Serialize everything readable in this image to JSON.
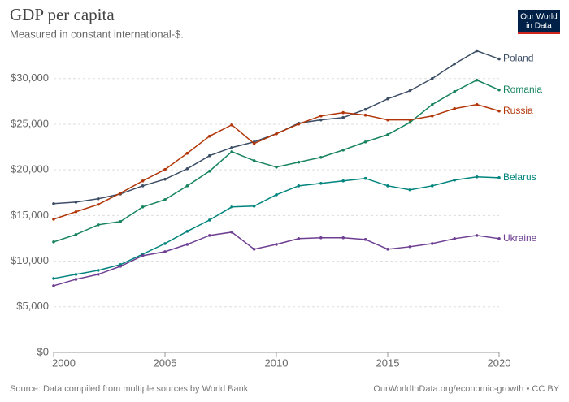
{
  "chart_data": {
    "type": "line",
    "title": "GDP per capita",
    "subtitle": "Measured in constant international-$.",
    "source": "Source: Data compiled from multiple sources by World Bank",
    "credit": "OurWorldInData.org/economic-growth • CC BY",
    "logo": [
      "Our World",
      "in Data"
    ],
    "x": [
      2000,
      2001,
      2002,
      2003,
      2004,
      2005,
      2006,
      2007,
      2008,
      2009,
      2010,
      2011,
      2012,
      2013,
      2014,
      2015,
      2016,
      2017,
      2018,
      2019,
      2020
    ],
    "xlim": [
      2000,
      2020
    ],
    "xticks": [
      2000,
      2005,
      2010,
      2015,
      2020
    ],
    "ylim": [
      0,
      33000
    ],
    "yticks": [
      {
        "value": 0,
        "label": "$0"
      },
      {
        "value": 5000,
        "label": "$5,000"
      },
      {
        "value": 10000,
        "label": "$10,000"
      },
      {
        "value": 15000,
        "label": "$15,000"
      },
      {
        "value": 20000,
        "label": "$20,000"
      },
      {
        "value": 25000,
        "label": "$25,000"
      },
      {
        "value": 30000,
        "label": "$30,000"
      }
    ],
    "grid": true,
    "series": [
      {
        "name": "Poland",
        "color": "#3c4e66",
        "values": [
          16300,
          16470,
          16830,
          17360,
          18250,
          18970,
          20120,
          21550,
          22440,
          23060,
          23950,
          25110,
          25470,
          25730,
          26620,
          27780,
          28670,
          30010,
          31610,
          33040,
          32150
        ]
      },
      {
        "name": "Romania",
        "color": "#18845f",
        "values": [
          12110,
          12910,
          13980,
          14340,
          15940,
          16740,
          18250,
          19860,
          21990,
          21010,
          20300,
          20840,
          21370,
          22170,
          23060,
          23860,
          25200,
          27160,
          28580,
          29830,
          28760
        ]
      },
      {
        "name": "Russia",
        "color": "#b13507",
        "values": [
          14600,
          15410,
          16210,
          17450,
          18790,
          20040,
          21820,
          23690,
          24930,
          22880,
          23950,
          25020,
          25910,
          26270,
          26000,
          25470,
          25470,
          25910,
          26710,
          27160,
          26450
        ]
      },
      {
        "name": "Belarus",
        "color": "#00847e",
        "values": [
          8100,
          8550,
          8990,
          9620,
          10770,
          11930,
          13270,
          14510,
          15940,
          16030,
          17270,
          18250,
          18520,
          18790,
          19060,
          18250,
          17810,
          18250,
          18880,
          19230,
          19140
        ]
      },
      {
        "name": "Ukraine",
        "color": "#6d3e91",
        "values": [
          7300,
          8010,
          8550,
          9440,
          10600,
          11040,
          11840,
          12820,
          13180,
          11310,
          11840,
          12470,
          12560,
          12560,
          12380,
          11310,
          11580,
          11930,
          12470,
          12820,
          12470
        ]
      }
    ]
  }
}
